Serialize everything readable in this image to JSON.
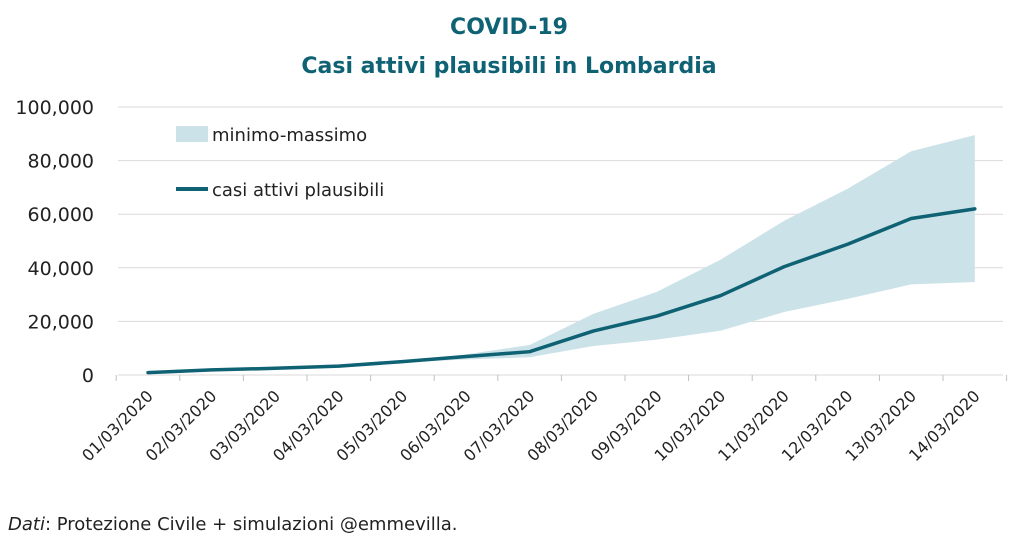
{
  "chart_data": {
    "type": "area",
    "title": "COVID-19",
    "subtitle": "Casi attivi plausibili in Lombardia",
    "categories": [
      "01/03/2020",
      "02/03/2020",
      "03/03/2020",
      "04/03/2020",
      "05/03/2020",
      "06/03/2020",
      "07/03/2020",
      "08/03/2020",
      "09/03/2020",
      "10/03/2020",
      "11/03/2020",
      "12/03/2020",
      "13/03/2020",
      "14/03/2020"
    ],
    "series": [
      {
        "name": "minimo-massimo",
        "kind": "band",
        "min": [
          900,
          1900,
          2500,
          3200,
          4700,
          5800,
          6600,
          10800,
          13200,
          16500,
          23500,
          28400,
          33800,
          34700
        ],
        "max": [
          900,
          1900,
          2500,
          3300,
          5200,
          7700,
          11200,
          22800,
          31000,
          43000,
          57500,
          69500,
          83500,
          89500
        ]
      },
      {
        "name": "casi attivi plausibili",
        "kind": "line",
        "values": [
          900,
          1900,
          2500,
          3300,
          5000,
          6900,
          8700,
          16400,
          22000,
          29600,
          40400,
          48800,
          58400,
          62000
        ]
      }
    ],
    "ylim": [
      0,
      100000
    ],
    "yticks": [
      "0",
      "20,000",
      "40,000",
      "60,000",
      "80,000",
      "100,000"
    ],
    "ytick_values": [
      0,
      20000,
      40000,
      60000,
      80000,
      100000
    ],
    "grid": true,
    "legend_position": "top-left",
    "colors": {
      "band": "#cbe2e8",
      "line": "#0e6274",
      "title": "#0e6274"
    }
  },
  "source": {
    "label": "Dati",
    "text": ": Protezione Civile + simulazioni @emmevilla."
  }
}
